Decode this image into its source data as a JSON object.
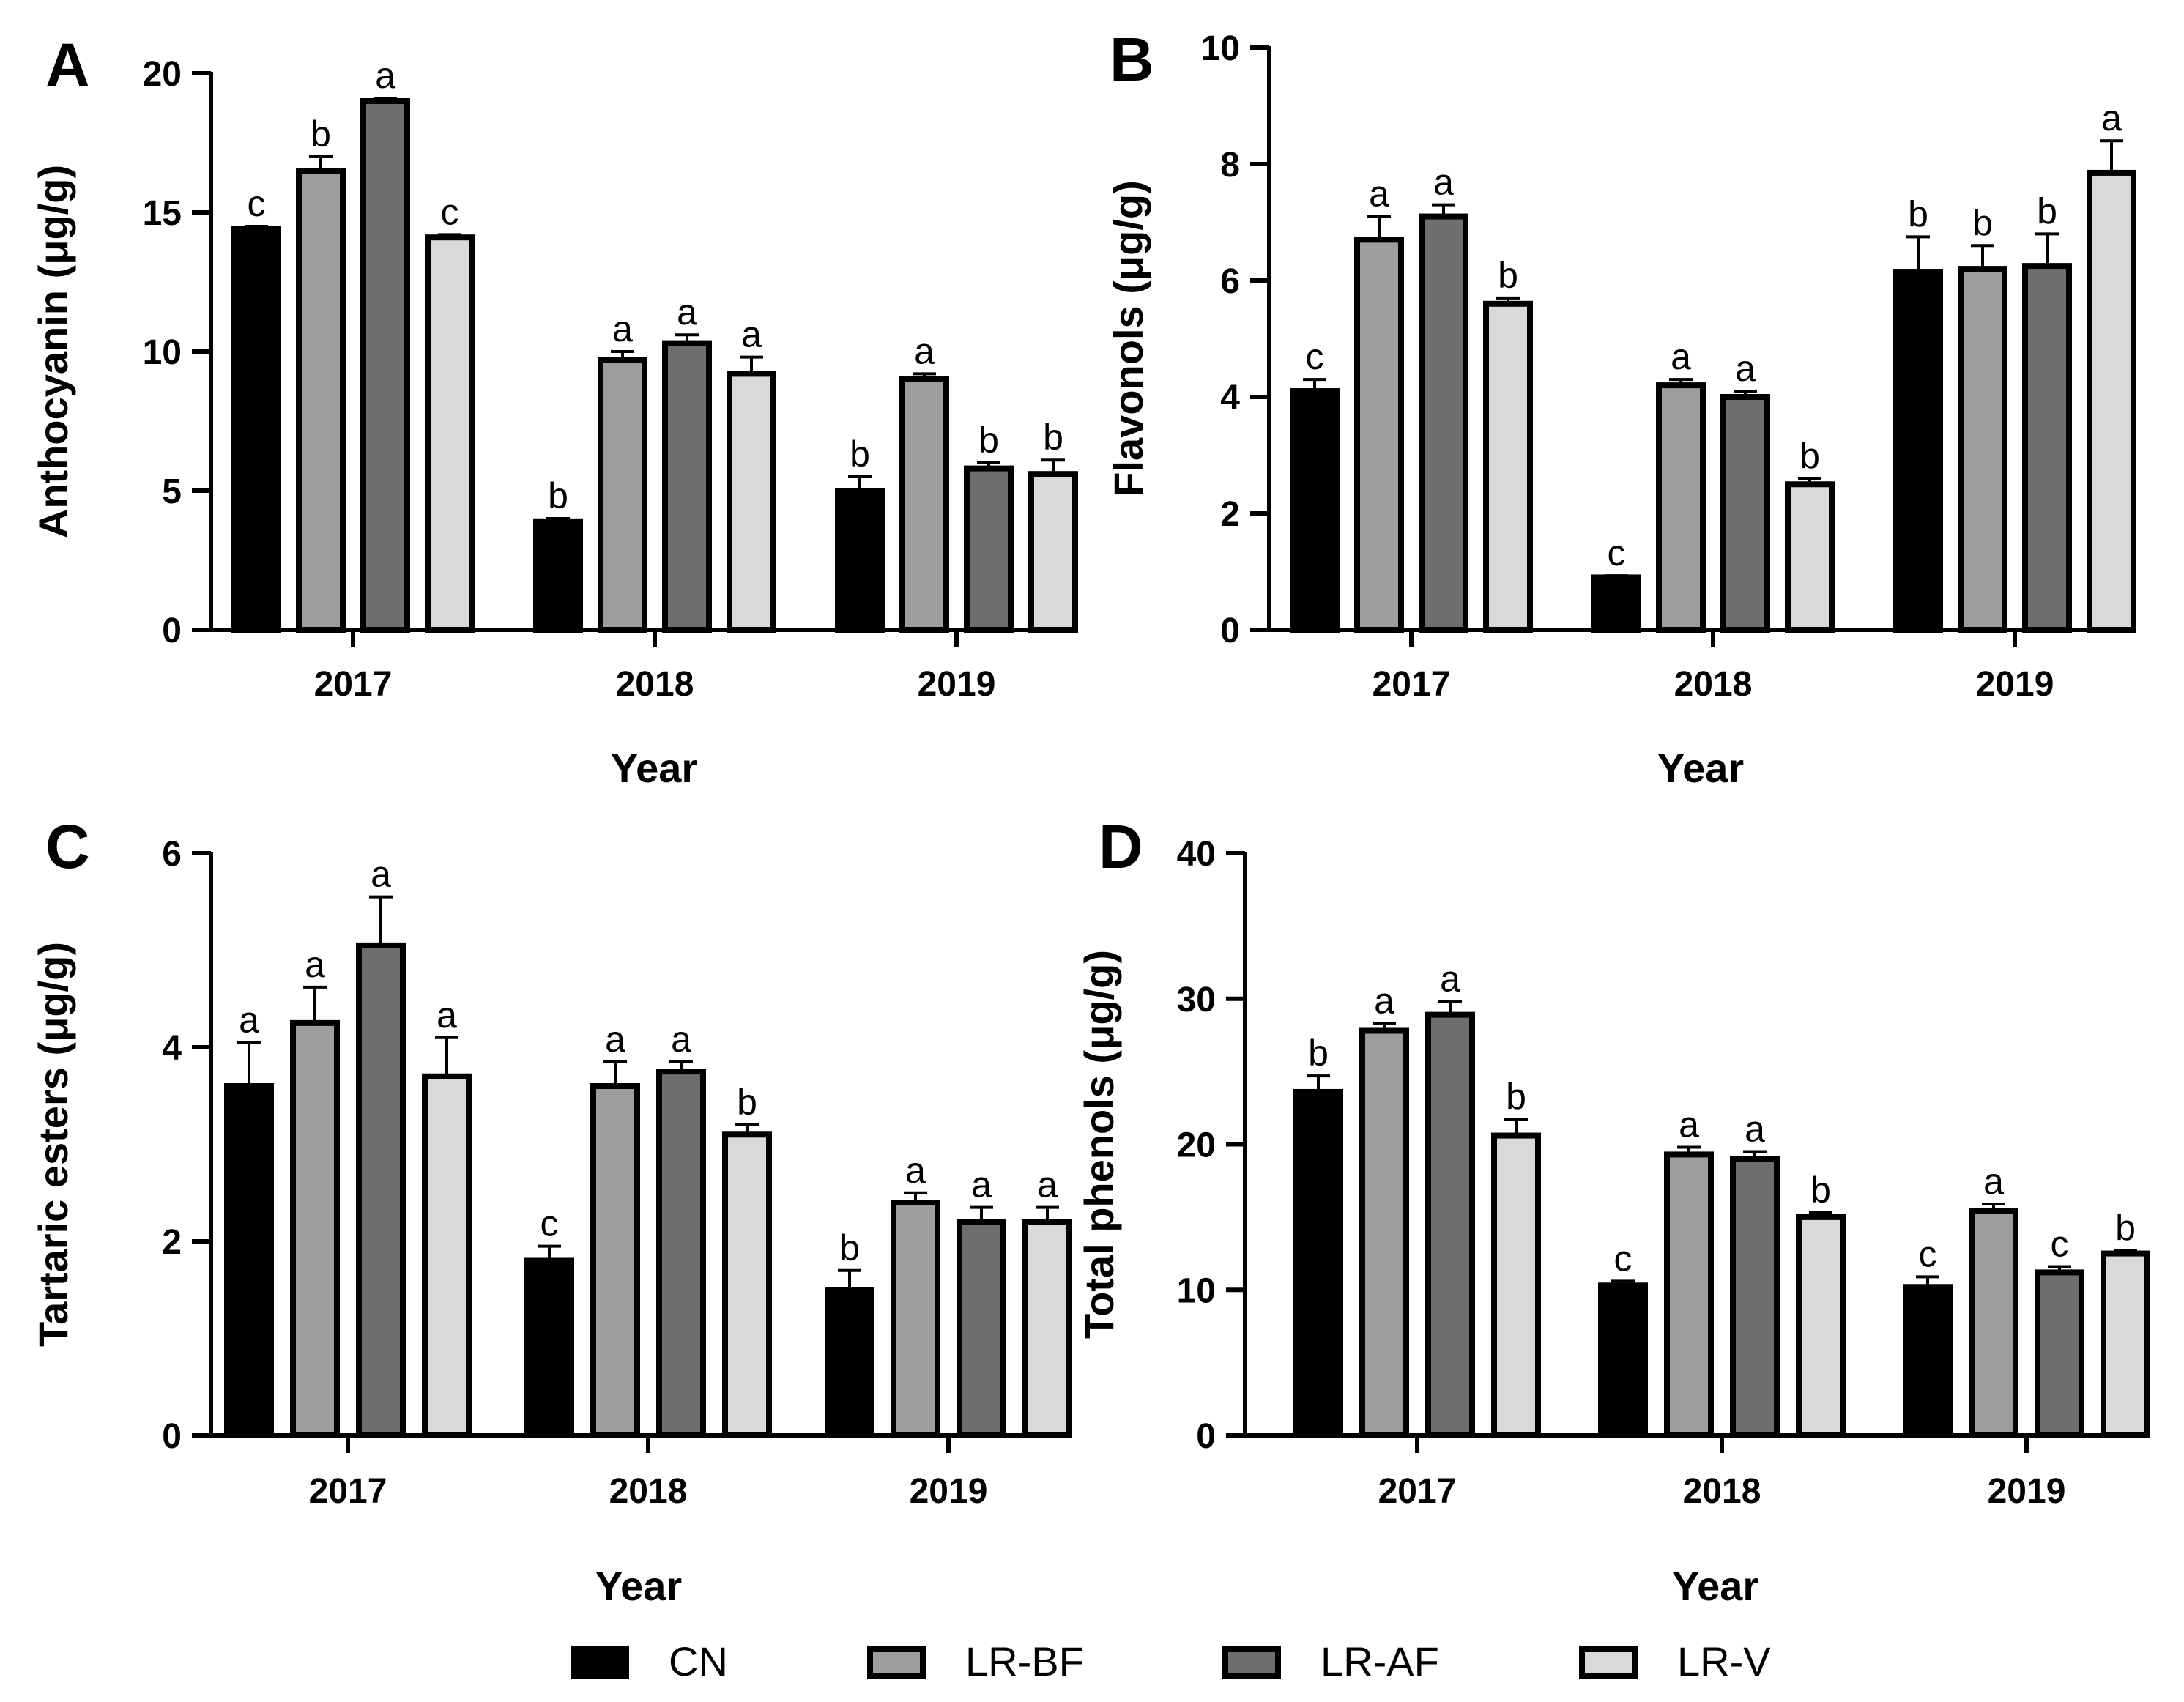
{
  "chart_data": [
    {
      "type": "bar",
      "panel": "A",
      "categories": [
        "2017",
        "2018",
        "2019"
      ],
      "xlabel": "Year",
      "ylabel": "Anthocyanin (μg/g)",
      "ylim": [
        0,
        20
      ],
      "yticks": [
        0,
        5,
        10,
        15,
        20
      ],
      "series": [
        {
          "name": "CN",
          "values": [
            14.4,
            3.9,
            5.0
          ],
          "errors": [
            0.1,
            0.1,
            0.5
          ],
          "labels": [
            "c",
            "b",
            "b"
          ]
        },
        {
          "name": "LR-BF",
          "values": [
            16.5,
            9.7,
            9.0
          ],
          "errors": [
            0.5,
            0.3,
            0.2
          ],
          "labels": [
            "b",
            "a",
            "a"
          ]
        },
        {
          "name": "LR-AF",
          "values": [
            19.0,
            10.3,
            5.8
          ],
          "errors": [
            0.1,
            0.3,
            0.2
          ],
          "labels": [
            "a",
            "a",
            "b"
          ]
        },
        {
          "name": "LR-V",
          "values": [
            14.1,
            9.2,
            5.6
          ],
          "errors": [
            0.1,
            0.6,
            0.5
          ],
          "labels": [
            "c",
            "a",
            "b"
          ]
        }
      ]
    },
    {
      "type": "bar",
      "panel": "B",
      "categories": [
        "2017",
        "2018",
        "2019"
      ],
      "xlabel": "Year",
      "ylabel": "Flavonols (μg/g)",
      "ylim": [
        0,
        10
      ],
      "yticks": [
        0,
        2,
        4,
        6,
        8,
        10
      ],
      "series": [
        {
          "name": "CN",
          "values": [
            4.1,
            0.9,
            6.15
          ],
          "errors": [
            0.2,
            0.03,
            0.6
          ],
          "labels": [
            "c",
            "c",
            "b"
          ]
        },
        {
          "name": "LR-BF",
          "values": [
            6.7,
            4.2,
            6.2
          ],
          "errors": [
            0.4,
            0.1,
            0.4
          ],
          "labels": [
            "a",
            "a",
            "b"
          ]
        },
        {
          "name": "LR-AF",
          "values": [
            7.1,
            4.0,
            6.25
          ],
          "errors": [
            0.2,
            0.1,
            0.55
          ],
          "labels": [
            "a",
            "a",
            "b"
          ]
        },
        {
          "name": "LR-V",
          "values": [
            5.6,
            2.5,
            7.85
          ],
          "errors": [
            0.1,
            0.1,
            0.55
          ],
          "labels": [
            "b",
            "b",
            "a"
          ]
        }
      ]
    },
    {
      "type": "bar",
      "panel": "C",
      "categories": [
        "2017",
        "2018",
        "2019"
      ],
      "xlabel": "Year",
      "ylabel": "Tartaric esters (μg/g)",
      "ylim": [
        0,
        6
      ],
      "yticks": [
        0,
        2,
        4,
        6
      ],
      "series": [
        {
          "name": "CN",
          "values": [
            3.6,
            1.8,
            1.5
          ],
          "errors": [
            0.45,
            0.15,
            0.2
          ],
          "labels": [
            "a",
            "c",
            "b"
          ]
        },
        {
          "name": "LR-BF",
          "values": [
            4.25,
            3.6,
            2.4
          ],
          "errors": [
            0.37,
            0.25,
            0.1
          ],
          "labels": [
            "a",
            "a",
            "a"
          ]
        },
        {
          "name": "LR-AF",
          "values": [
            5.05,
            3.75,
            2.2
          ],
          "errors": [
            0.5,
            0.1,
            0.15
          ],
          "labels": [
            "a",
            "a",
            "a"
          ]
        },
        {
          "name": "LR-V",
          "values": [
            3.7,
            3.1,
            2.2
          ],
          "errors": [
            0.4,
            0.1,
            0.15
          ],
          "labels": [
            "a",
            "b",
            "a"
          ]
        }
      ]
    },
    {
      "type": "bar",
      "panel": "D",
      "categories": [
        "2017",
        "2018",
        "2019"
      ],
      "xlabel": "Year",
      "ylabel": "Total phenols (μg/g)",
      "ylim": [
        0,
        40
      ],
      "yticks": [
        0,
        10,
        20,
        30,
        40
      ],
      "series": [
        {
          "name": "CN",
          "values": [
            23.6,
            10.3,
            10.2
          ],
          "errors": [
            1.1,
            0.3,
            0.7
          ],
          "labels": [
            "b",
            "c",
            "c"
          ]
        },
        {
          "name": "LR-BF",
          "values": [
            27.8,
            19.3,
            15.4
          ],
          "errors": [
            0.5,
            0.5,
            0.5
          ],
          "labels": [
            "a",
            "a",
            "a"
          ]
        },
        {
          "name": "LR-AF",
          "values": [
            28.9,
            19.0,
            11.2
          ],
          "errors": [
            0.9,
            0.5,
            0.4
          ],
          "labels": [
            "a",
            "a",
            "c"
          ]
        },
        {
          "name": "LR-V",
          "values": [
            20.6,
            15.0,
            12.5
          ],
          "errors": [
            1.1,
            0.3,
            0.2
          ],
          "labels": [
            "b",
            "b",
            "b"
          ]
        }
      ]
    }
  ],
  "legend": {
    "entries": [
      {
        "name": "CN",
        "color": "#000000"
      },
      {
        "name": "LR-BF",
        "color": "#9d9d9d"
      },
      {
        "name": "LR-AF",
        "color": "#6e6e6e"
      },
      {
        "name": "LR-V",
        "color": "#d9d9d9"
      }
    ]
  }
}
